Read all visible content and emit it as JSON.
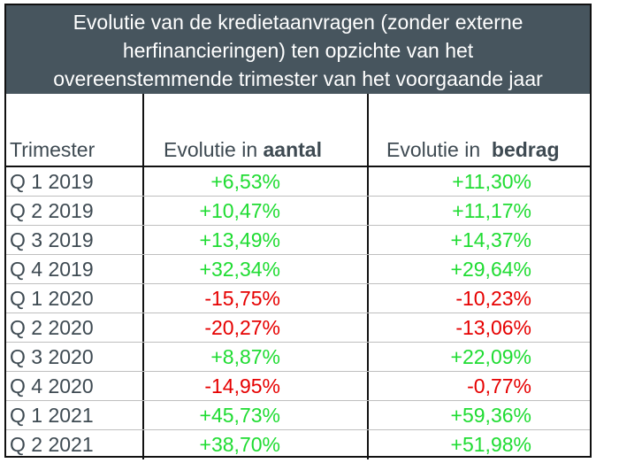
{
  "title_lines": [
    "Evolutie van de kredietaanvragen (zonder externe",
    "herfinancieringen) ten opzichte van het",
    "overeenstemmende trimester van het voorgaande jaar"
  ],
  "headers": {
    "trimester": "Trimester",
    "aantal_prefix": "Evolutie in ",
    "aantal_bold": "aantal",
    "bedrag_prefix": "Evolutie in  ",
    "bedrag_bold": "bedrag"
  },
  "colors": {
    "title_bg": "#47555e",
    "positive": "#1fdc32",
    "negative": "#e60000",
    "label": "#3e4a52"
  },
  "rows": [
    {
      "trimester": "Q 1 2019",
      "aantal": "+6,53%",
      "bedrag": "+11,30%",
      "aantal_sign": "pos",
      "bedrag_sign": "pos"
    },
    {
      "trimester": "Q 2 2019",
      "aantal": "+10,47%",
      "bedrag": "+11,17%",
      "aantal_sign": "pos",
      "bedrag_sign": "pos"
    },
    {
      "trimester": "Q 3 2019",
      "aantal": "+13,49%",
      "bedrag": "+14,37%",
      "aantal_sign": "pos",
      "bedrag_sign": "pos"
    },
    {
      "trimester": "Q 4 2019",
      "aantal": "+32,34%",
      "bedrag": "+29,64%",
      "aantal_sign": "pos",
      "bedrag_sign": "pos"
    },
    {
      "trimester": "Q 1 2020",
      "aantal": "-15,75%",
      "bedrag": "-10,23%",
      "aantal_sign": "neg",
      "bedrag_sign": "neg"
    },
    {
      "trimester": "Q 2 2020",
      "aantal": "-20,27%",
      "bedrag": "-13,06%",
      "aantal_sign": "neg",
      "bedrag_sign": "neg"
    },
    {
      "trimester": "Q 3 2020",
      "aantal": "+8,87%",
      "bedrag": "+22,09%",
      "aantal_sign": "pos",
      "bedrag_sign": "pos"
    },
    {
      "trimester": "Q 4 2020",
      "aantal": "-14,95%",
      "bedrag": "-0,77%",
      "aantal_sign": "neg",
      "bedrag_sign": "neg"
    },
    {
      "trimester": "Q 1 2021",
      "aantal": "+45,73%",
      "bedrag": "+59,36%",
      "aantal_sign": "pos",
      "bedrag_sign": "pos"
    },
    {
      "trimester": "Q 2 2021",
      "aantal": "+38,70%",
      "bedrag": "+51,98%",
      "aantal_sign": "pos",
      "bedrag_sign": "pos"
    }
  ]
}
